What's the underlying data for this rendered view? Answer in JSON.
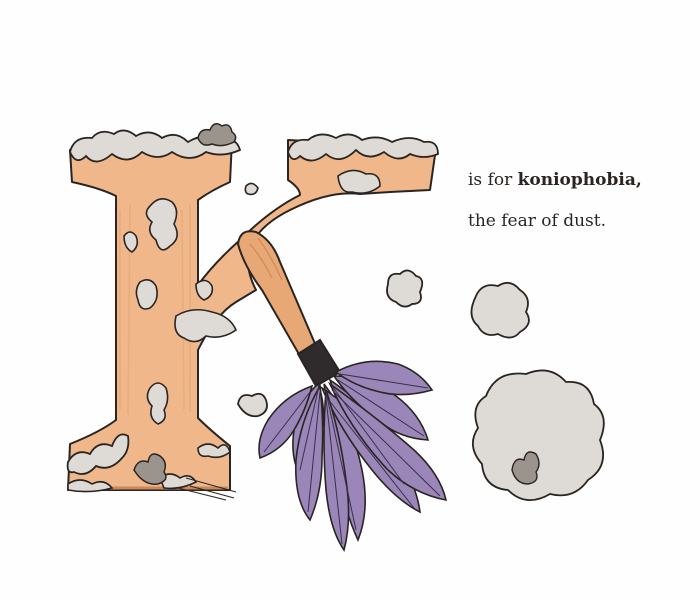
{
  "caption": {
    "prefix": "is for ",
    "word": "koniophobia,",
    "definition": "the fear of dust."
  },
  "palette": {
    "letter_fill": "#f0b88a",
    "letter_stroke": "#2a2522",
    "dust_fill": "#d9d6d1",
    "dust_shadow": "#9a948d",
    "feather_fill": "#9a86b8",
    "feather_vein": "#3a2f4a",
    "handle_fill": "#e8a876",
    "band_fill": "#2f2b2d"
  }
}
